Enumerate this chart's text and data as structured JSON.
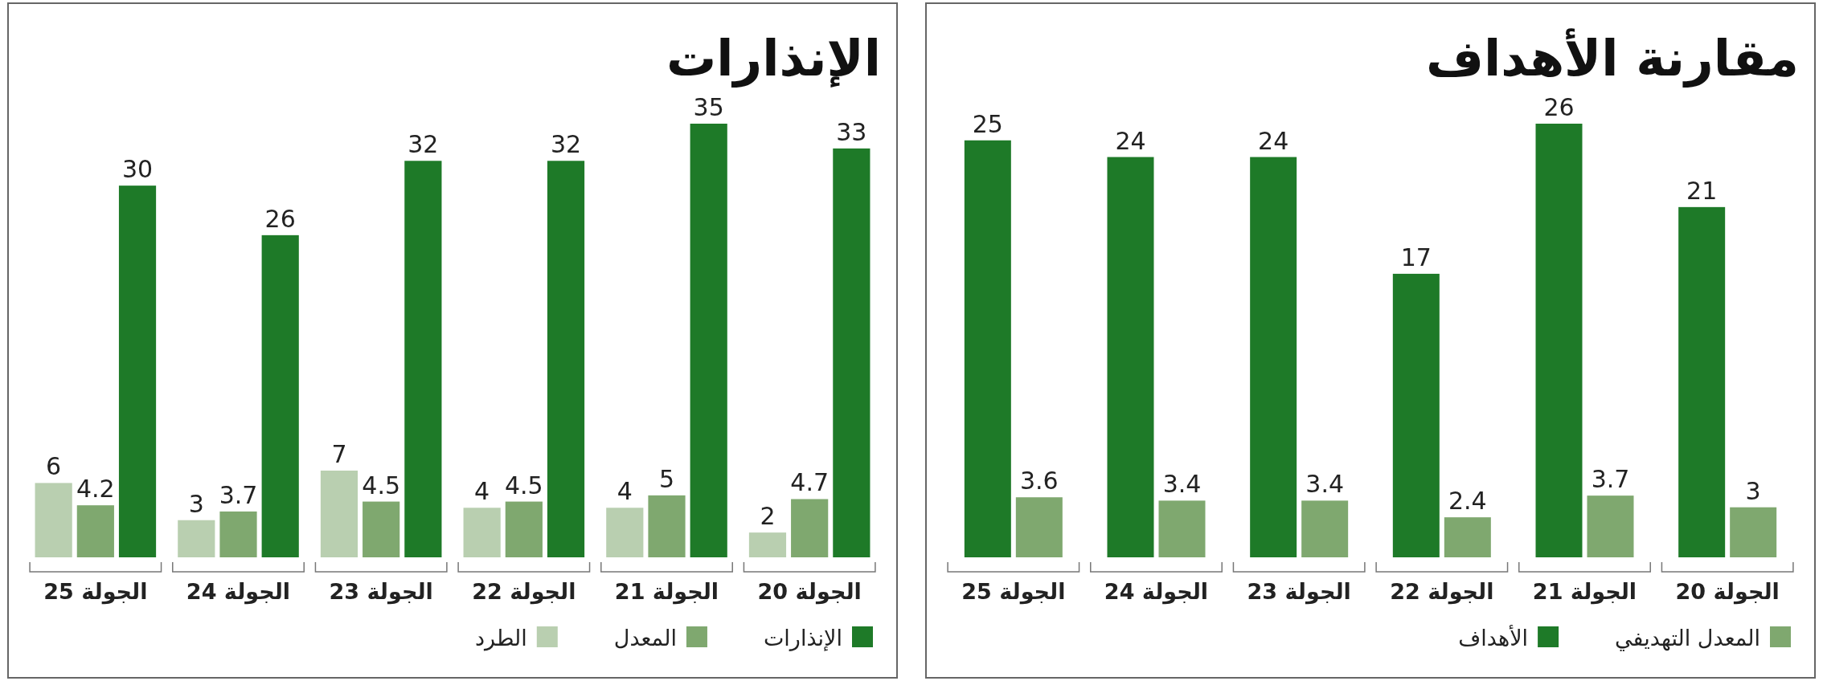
{
  "chart_data": [
    {
      "type": "bar",
      "title": "مقارنة الأهداف",
      "categories": [
        "الجولة 25",
        "الجولة 24",
        "الجولة 23",
        "الجولة 22",
        "الجولة 21",
        "الجولة 20"
      ],
      "data_labels": true,
      "legend": "bottom",
      "series": [
        {
          "name": "الأهداف",
          "color": "#1e7a28",
          "values": [
            25,
            24,
            24,
            17,
            26,
            21
          ]
        },
        {
          "name": "المعدل التهديفي",
          "color": "#7fa86f",
          "values": [
            3.6,
            3.4,
            3.4,
            2.4,
            3.7,
            3
          ]
        }
      ]
    },
    {
      "type": "bar",
      "title": "الإنذارات",
      "categories": [
        "الجولة 25",
        "الجولة 24",
        "الجولة 23",
        "الجولة 22",
        "الجولة 21",
        "الجولة 20"
      ],
      "data_labels": true,
      "legend": "bottom",
      "series": [
        {
          "name": "الطرد",
          "color": "#b9cfb0",
          "values": [
            6,
            3,
            7,
            4,
            4,
            2
          ]
        },
        {
          "name": "المعدل",
          "color": "#7fa86f",
          "values": [
            4.2,
            3.7,
            4.5,
            4.5,
            5,
            4.7
          ]
        },
        {
          "name": "الإنذارات",
          "color": "#1e7a28",
          "values": [
            30,
            26,
            32,
            32,
            35,
            33
          ]
        }
      ]
    }
  ]
}
